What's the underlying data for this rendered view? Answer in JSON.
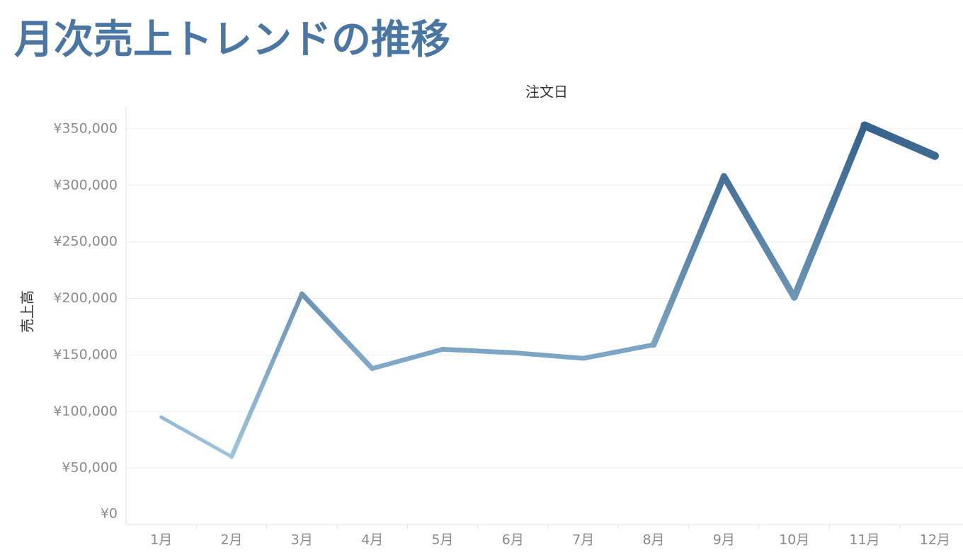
{
  "chart_data": {
    "type": "line",
    "title": "月次売上トレンドの推移",
    "x_label": "注文日",
    "y_label": "売上高",
    "categories": [
      "1月",
      "2月",
      "3月",
      "4月",
      "5月",
      "6月",
      "7月",
      "8月",
      "9月",
      "10月",
      "11月",
      "12月"
    ],
    "values": [
      95000,
      60000,
      204000,
      138000,
      155000,
      152000,
      147000,
      159000,
      308000,
      201000,
      353000,
      326000
    ],
    "color_range": [
      "#b4d8ee",
      "#2f5c87"
    ],
    "ylim": [
      0,
      370000
    ],
    "yticks": [
      {
        "value": 0,
        "label": "¥0"
      },
      {
        "value": 50000,
        "label": "¥50,000"
      },
      {
        "value": 100000,
        "label": "¥100,000"
      },
      {
        "value": 150000,
        "label": "¥150,000"
      },
      {
        "value": 200000,
        "label": "¥200,000"
      },
      {
        "value": 250000,
        "label": "¥250,000"
      },
      {
        "value": 300000,
        "label": "¥300,000"
      },
      {
        "value": 350000,
        "label": "¥350,000"
      }
    ],
    "grid": true
  }
}
